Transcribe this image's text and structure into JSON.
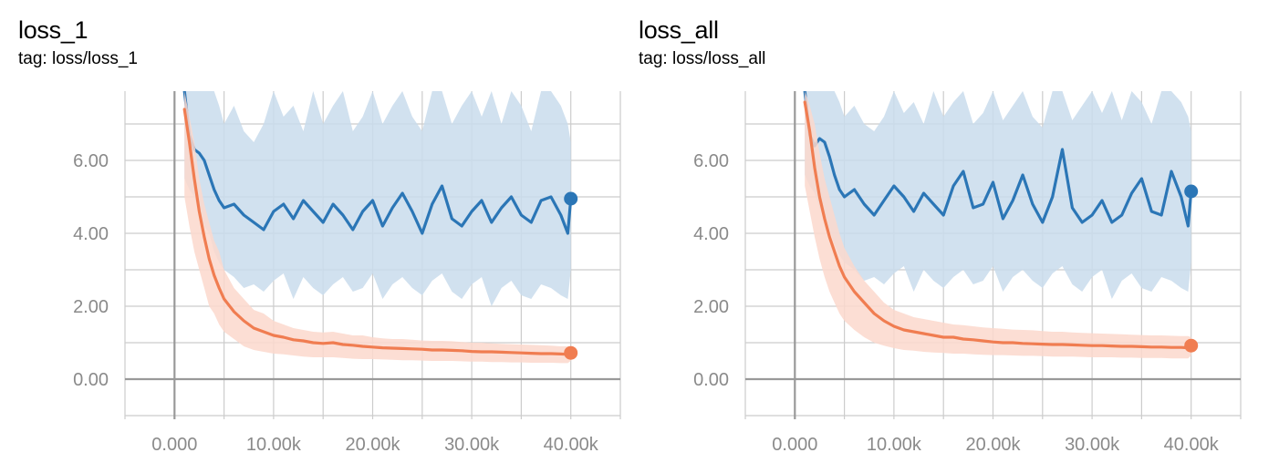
{
  "colors": {
    "blue": "#2b76b6",
    "blue_raw": "#c9dcec",
    "orange": "#f07d51",
    "orange_raw": "#fbd8cc",
    "grid": "#cccccc",
    "axis": "#999999"
  },
  "chart_data": [
    {
      "type": "line",
      "title": "loss_1",
      "tag": "tag: loss/loss_1",
      "xlim": [
        -5000,
        45000
      ],
      "ylim": [
        -1.1,
        7.9
      ],
      "x_ticks": [
        "0.000",
        "10.00k",
        "20.00k",
        "30.00k",
        "40.00k"
      ],
      "x_tick_values": [
        0,
        10000,
        20000,
        30000,
        40000
      ],
      "y_ticks": [
        "0.00",
        "2.00",
        "4.00",
        "6.00"
      ],
      "y_tick_values": [
        0,
        2,
        4,
        6
      ],
      "grid": true,
      "series": [
        {
          "color": "blue",
          "x": [
            1000,
            1500,
            2000,
            2500,
            3000,
            3500,
            4000,
            4500,
            5000,
            6000,
            7000,
            8000,
            9000,
            10000,
            11000,
            12000,
            13000,
            14000,
            15000,
            16000,
            17000,
            18000,
            19000,
            20000,
            21000,
            22000,
            23000,
            24000,
            25000,
            26000,
            27000,
            28000,
            29000,
            30000,
            31000,
            32000,
            33000,
            34000,
            35000,
            36000,
            37000,
            38000,
            39000,
            39700,
            40000
          ],
          "y": [
            7.9,
            6.7,
            6.3,
            6.2,
            6.0,
            5.6,
            5.2,
            4.9,
            4.7,
            4.8,
            4.5,
            4.3,
            4.1,
            4.6,
            4.8,
            4.4,
            4.9,
            4.6,
            4.3,
            4.8,
            4.5,
            4.1,
            4.6,
            4.9,
            4.2,
            4.7,
            5.1,
            4.6,
            4.0,
            4.8,
            5.3,
            4.4,
            4.2,
            4.6,
            4.9,
            4.3,
            4.7,
            5.0,
            4.5,
            4.3,
            4.9,
            5.0,
            4.5,
            4.0,
            4.95
          ],
          "band_high": [
            7.9,
            7.9,
            7.9,
            7.9,
            7.9,
            7.9,
            7.9,
            7.5,
            7.0,
            7.5,
            6.8,
            6.5,
            7.0,
            7.9,
            7.2,
            7.5,
            6.8,
            7.9,
            7.0,
            7.5,
            7.9,
            6.8,
            7.2,
            7.9,
            7.0,
            7.5,
            7.9,
            7.2,
            6.8,
            7.9,
            7.9,
            7.0,
            7.5,
            7.9,
            7.2,
            7.9,
            7.0,
            7.9,
            7.5,
            6.8,
            7.9,
            7.9,
            7.5,
            7.0,
            6.5
          ],
          "band_low": [
            5.5,
            5.2,
            5.0,
            4.5,
            4.2,
            4.0,
            3.5,
            3.2,
            3.0,
            2.8,
            2.5,
            2.6,
            2.4,
            2.7,
            2.9,
            2.2,
            2.8,
            2.5,
            2.3,
            2.6,
            2.8,
            2.4,
            2.5,
            2.9,
            2.2,
            2.6,
            2.8,
            2.5,
            2.3,
            2.7,
            2.9,
            2.4,
            2.2,
            2.6,
            2.8,
            2.0,
            2.5,
            2.7,
            2.3,
            2.2,
            2.6,
            2.5,
            2.3,
            2.2,
            3.0
          ]
        },
        {
          "color": "orange",
          "x": [
            1000,
            1500,
            2000,
            2500,
            3000,
            3500,
            4000,
            4500,
            5000,
            6000,
            7000,
            8000,
            9000,
            10000,
            11000,
            12000,
            13000,
            14000,
            15000,
            16000,
            17000,
            18000,
            19000,
            20000,
            21000,
            22000,
            23000,
            24000,
            25000,
            26000,
            27000,
            28000,
            29000,
            30000,
            31000,
            32000,
            33000,
            34000,
            35000,
            36000,
            37000,
            38000,
            39000,
            39700,
            40000
          ],
          "y": [
            7.4,
            6.5,
            5.5,
            4.6,
            3.9,
            3.3,
            2.85,
            2.5,
            2.2,
            1.85,
            1.6,
            1.4,
            1.3,
            1.2,
            1.15,
            1.08,
            1.05,
            1.0,
            0.98,
            1.0,
            0.95,
            0.93,
            0.9,
            0.88,
            0.86,
            0.85,
            0.84,
            0.83,
            0.82,
            0.8,
            0.8,
            0.79,
            0.78,
            0.76,
            0.75,
            0.75,
            0.74,
            0.73,
            0.72,
            0.71,
            0.7,
            0.7,
            0.69,
            0.68,
            0.72
          ],
          "band_high": [
            7.9,
            7.2,
            6.5,
            5.5,
            4.8,
            4.3,
            3.8,
            3.5,
            3.0,
            2.5,
            2.2,
            1.9,
            1.8,
            1.6,
            1.5,
            1.4,
            1.35,
            1.3,
            1.28,
            1.3,
            1.25,
            1.2,
            1.2,
            1.15,
            1.12,
            1.1,
            1.1,
            1.08,
            1.06,
            1.05,
            1.05,
            1.04,
            1.02,
            1.0,
            1.0,
            0.98,
            0.97,
            0.96,
            0.95,
            0.94,
            0.93,
            0.92,
            0.9,
            0.9,
            0.9
          ],
          "band_low": [
            5.0,
            4.2,
            3.5,
            3.0,
            2.5,
            2.0,
            1.8,
            1.5,
            1.3,
            1.1,
            0.9,
            0.8,
            0.75,
            0.7,
            0.68,
            0.65,
            0.62,
            0.6,
            0.6,
            0.6,
            0.58,
            0.56,
            0.55,
            0.55,
            0.54,
            0.53,
            0.52,
            0.52,
            0.51,
            0.5,
            0.5,
            0.5,
            0.49,
            0.48,
            0.48,
            0.47,
            0.47,
            0.46,
            0.46,
            0.45,
            0.45,
            0.45,
            0.44,
            0.44,
            0.5
          ]
        }
      ]
    },
    {
      "type": "line",
      "title": "loss_all",
      "tag": "tag: loss/loss_all",
      "xlim": [
        -5000,
        45000
      ],
      "ylim": [
        -1.1,
        7.9
      ],
      "x_ticks": [
        "0.000",
        "10.00k",
        "20.00k",
        "30.00k",
        "40.00k"
      ],
      "x_tick_values": [
        0,
        10000,
        20000,
        30000,
        40000
      ],
      "y_ticks": [
        "0.00",
        "2.00",
        "4.00",
        "6.00"
      ],
      "y_tick_values": [
        0,
        2,
        4,
        6
      ],
      "grid": true,
      "series": [
        {
          "color": "blue",
          "x": [
            1000,
            1500,
            2000,
            2500,
            3000,
            3500,
            4000,
            4500,
            5000,
            6000,
            7000,
            8000,
            9000,
            10000,
            11000,
            12000,
            13000,
            14000,
            15000,
            16000,
            17000,
            18000,
            19000,
            20000,
            21000,
            22000,
            23000,
            24000,
            25000,
            26000,
            27000,
            28000,
            29000,
            30000,
            31000,
            32000,
            33000,
            34000,
            35000,
            36000,
            37000,
            38000,
            39000,
            39700,
            40000
          ],
          "y": [
            7.9,
            6.7,
            6.4,
            6.6,
            6.5,
            6.1,
            5.6,
            5.2,
            5.0,
            5.2,
            4.8,
            4.5,
            4.9,
            5.3,
            5.0,
            4.6,
            5.1,
            4.8,
            4.5,
            5.3,
            5.7,
            4.7,
            4.8,
            5.4,
            4.4,
            4.9,
            5.6,
            4.8,
            4.3,
            5.0,
            6.3,
            4.7,
            4.3,
            4.5,
            4.9,
            4.3,
            4.5,
            5.1,
            5.5,
            4.6,
            4.5,
            5.7,
            5.0,
            4.2,
            5.15
          ],
          "band_high": [
            7.9,
            7.9,
            7.9,
            7.9,
            7.9,
            7.9,
            7.9,
            7.6,
            7.2,
            7.5,
            7.0,
            6.8,
            7.2,
            7.9,
            7.3,
            7.6,
            7.0,
            7.9,
            7.2,
            7.6,
            7.9,
            7.0,
            7.3,
            7.9,
            7.1,
            7.5,
            7.9,
            7.2,
            6.9,
            7.9,
            7.9,
            7.1,
            7.5,
            7.9,
            7.3,
            7.9,
            7.1,
            7.9,
            7.6,
            7.0,
            7.9,
            7.9,
            7.6,
            7.2,
            6.8
          ],
          "band_low": [
            5.6,
            5.3,
            5.1,
            4.7,
            4.4,
            4.1,
            3.7,
            3.4,
            3.2,
            3.0,
            2.7,
            2.8,
            2.6,
            2.9,
            3.1,
            2.4,
            3.0,
            2.7,
            2.5,
            2.8,
            3.0,
            2.6,
            2.7,
            3.1,
            2.4,
            2.8,
            3.0,
            2.7,
            2.5,
            2.9,
            3.1,
            2.6,
            2.4,
            2.8,
            3.0,
            2.2,
            2.7,
            2.9,
            2.5,
            2.4,
            2.8,
            2.7,
            2.5,
            2.4,
            3.2
          ]
        },
        {
          "color": "orange",
          "x": [
            1000,
            1500,
            2000,
            2500,
            3000,
            3500,
            4000,
            4500,
            5000,
            6000,
            7000,
            8000,
            9000,
            10000,
            11000,
            12000,
            13000,
            14000,
            15000,
            16000,
            17000,
            18000,
            19000,
            20000,
            21000,
            22000,
            23000,
            24000,
            25000,
            26000,
            27000,
            28000,
            29000,
            30000,
            31000,
            32000,
            33000,
            34000,
            35000,
            36000,
            37000,
            38000,
            39000,
            39700,
            40000
          ],
          "y": [
            7.6,
            6.8,
            5.8,
            5.0,
            4.4,
            3.9,
            3.5,
            3.1,
            2.8,
            2.4,
            2.1,
            1.8,
            1.6,
            1.45,
            1.35,
            1.3,
            1.25,
            1.2,
            1.15,
            1.15,
            1.1,
            1.08,
            1.05,
            1.02,
            1.0,
            1.0,
            0.98,
            0.97,
            0.96,
            0.95,
            0.95,
            0.94,
            0.93,
            0.92,
            0.92,
            0.91,
            0.9,
            0.9,
            0.89,
            0.88,
            0.88,
            0.87,
            0.87,
            0.86,
            0.92
          ],
          "band_high": [
            7.9,
            7.5,
            7.0,
            6.2,
            5.5,
            5.0,
            4.5,
            4.0,
            3.6,
            3.1,
            2.7,
            2.4,
            2.1,
            1.9,
            1.8,
            1.7,
            1.65,
            1.6,
            1.55,
            1.5,
            1.48,
            1.45,
            1.42,
            1.4,
            1.38,
            1.36,
            1.35,
            1.34,
            1.32,
            1.3,
            1.3,
            1.28,
            1.27,
            1.26,
            1.25,
            1.24,
            1.23,
            1.22,
            1.21,
            1.2,
            1.2,
            1.19,
            1.18,
            1.18,
            1.15
          ],
          "band_low": [
            5.3,
            4.6,
            3.9,
            3.3,
            2.8,
            2.4,
            2.1,
            1.8,
            1.6,
            1.35,
            1.15,
            1.0,
            0.92,
            0.85,
            0.8,
            0.78,
            0.75,
            0.73,
            0.72,
            0.7,
            0.7,
            0.68,
            0.67,
            0.66,
            0.66,
            0.65,
            0.64,
            0.64,
            0.63,
            0.62,
            0.62,
            0.62,
            0.61,
            0.6,
            0.6,
            0.6,
            0.59,
            0.59,
            0.58,
            0.58,
            0.58,
            0.57,
            0.57,
            0.57,
            0.65
          ]
        }
      ]
    }
  ]
}
